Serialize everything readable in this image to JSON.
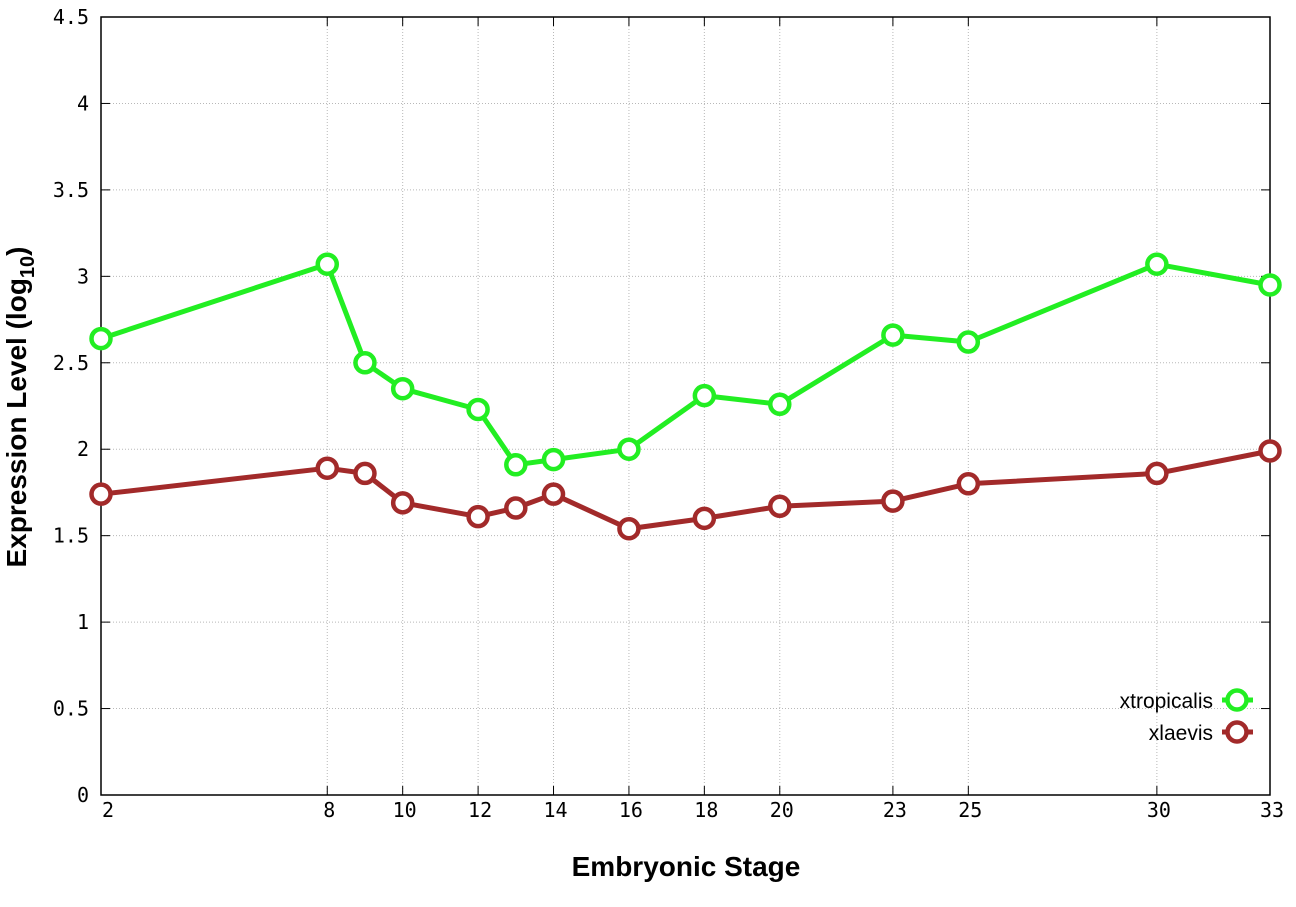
{
  "chart_data": {
    "type": "line",
    "xlabel": "Embryonic Stage",
    "ylabel_main": "Expression Level (log",
    "ylabel_sub": "10",
    "ylabel_close": ")",
    "x_ticks": [
      2,
      8,
      10,
      12,
      14,
      16,
      18,
      20,
      23,
      25,
      30,
      33
    ],
    "x_tick_labels": [
      "2",
      "8",
      "10",
      "12",
      "14",
      "16",
      "18",
      "20",
      "23",
      "25",
      "30",
      "33"
    ],
    "y_ticks": [
      0,
      0.5,
      1,
      1.5,
      2,
      2.5,
      3,
      3.5,
      4,
      4.5
    ],
    "y_tick_labels": [
      "0",
      "0.5",
      "1",
      "1.5",
      "2",
      "2.5",
      "3",
      "3.5",
      "4",
      "4.5"
    ],
    "xlim": [
      2,
      33
    ],
    "ylim": [
      0,
      4.5
    ],
    "grid": true,
    "legend_position": "bottom-right",
    "x": [
      2,
      8,
      9,
      10,
      12,
      13,
      14,
      16,
      18,
      20,
      23,
      25,
      30,
      33
    ],
    "series": [
      {
        "name": "xtropicalis",
        "color": "#22ee22",
        "values": [
          2.64,
          3.07,
          2.5,
          2.35,
          2.23,
          1.91,
          1.94,
          2.0,
          2.31,
          2.26,
          2.66,
          2.62,
          3.07,
          2.95
        ]
      },
      {
        "name": "xlaevis",
        "color": "#a22a2a",
        "values": [
          1.74,
          1.89,
          1.86,
          1.69,
          1.61,
          1.66,
          1.74,
          1.54,
          1.6,
          1.67,
          1.7,
          1.8,
          1.86,
          1.99
        ]
      }
    ]
  }
}
